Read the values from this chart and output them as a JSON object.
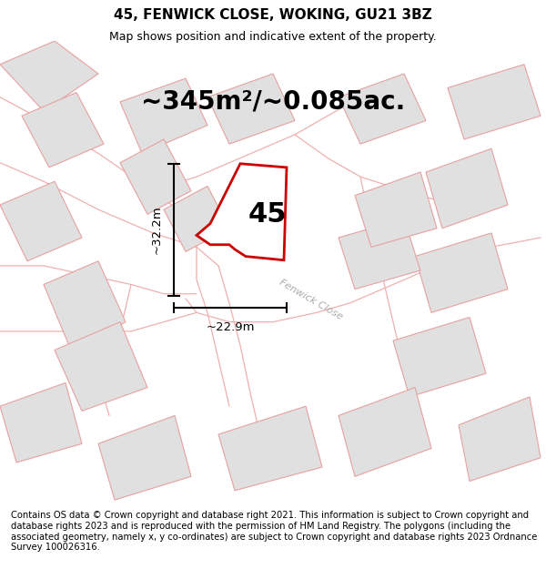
{
  "title": "45, FENWICK CLOSE, WOKING, GU21 3BZ",
  "subtitle": "Map shows position and indicative extent of the property.",
  "area_text": "~345m²/~0.085ac.",
  "dim_vertical": "~32.2m",
  "dim_horizontal": "~22.9m",
  "label_45": "45",
  "street_label": "Fenwick Close",
  "footer": "Contains OS data © Crown copyright and database right 2021. This information is subject to Crown copyright and database rights 2023 and is reproduced with the permission of HM Land Registry. The polygons (including the associated geometry, namely x, y co-ordinates) are subject to Crown copyright and database rights 2023 Ordnance Survey 100026316.",
  "map_bg": "#ffffff",
  "neighbor_fill": "#e0e0e0",
  "neighbor_outline": "#e8a0a0",
  "road_color": "#f0b0b0",
  "plot_outline": "#cc0000",
  "title_fontsize": 11,
  "subtitle_fontsize": 9,
  "area_fontsize": 20,
  "label_fontsize": 22,
  "footer_fontsize": 7.2
}
